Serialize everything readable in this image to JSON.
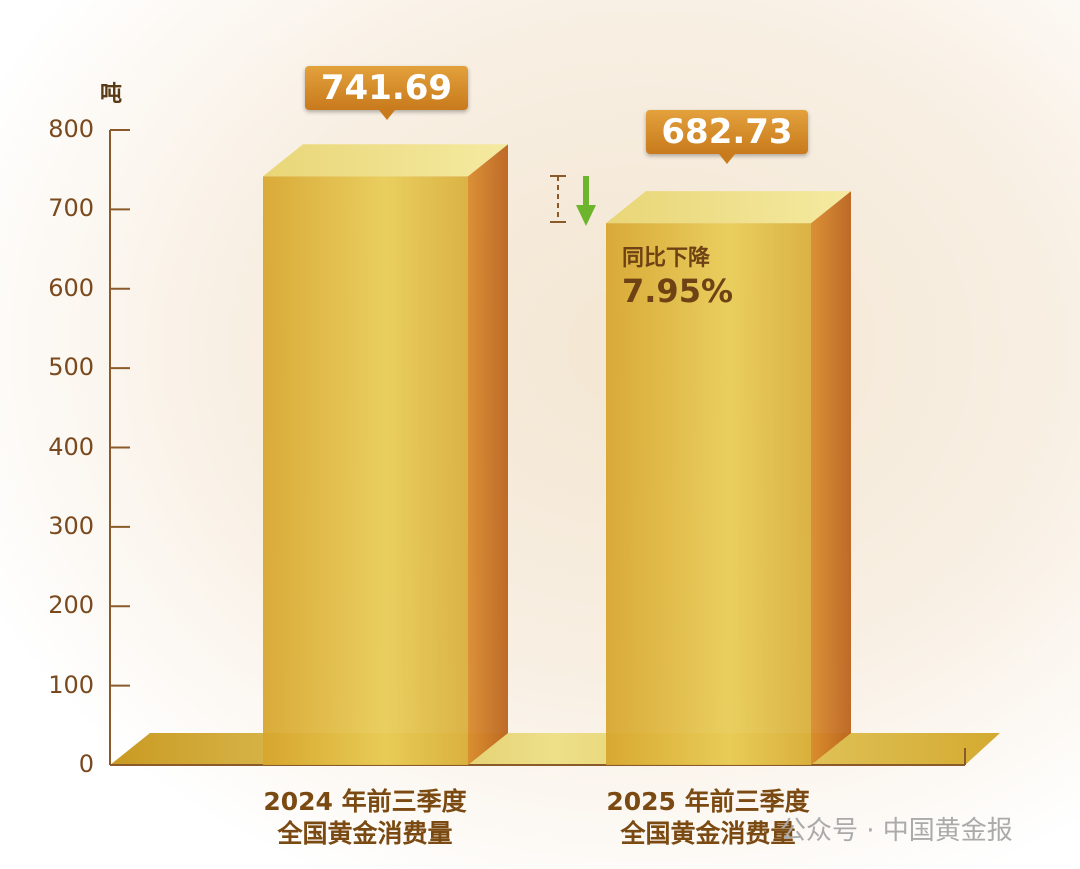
{
  "chart_data": {
    "type": "bar",
    "title": "",
    "ylabel": "吨",
    "ylim": [
      0,
      800
    ],
    "yticks": [
      0,
      100,
      200,
      300,
      400,
      500,
      600,
      700,
      800
    ],
    "categories": [
      [
        "2024 年前三季度",
        "全国黄金消费量"
      ],
      [
        "2025 年前三季度",
        "全国黄金消费量"
      ]
    ],
    "values": [
      741.69,
      682.73
    ],
    "value_labels": [
      "741.69",
      "682.73"
    ],
    "annotation": {
      "line1": "同比下降",
      "line2": "7.95%"
    },
    "colors": {
      "bar": "#d9b23a",
      "side": "#c66f1e",
      "axis": "#8a5a2a",
      "arrow": "#6cb52d"
    }
  },
  "watermark": "公众号 · 中国黄金报"
}
